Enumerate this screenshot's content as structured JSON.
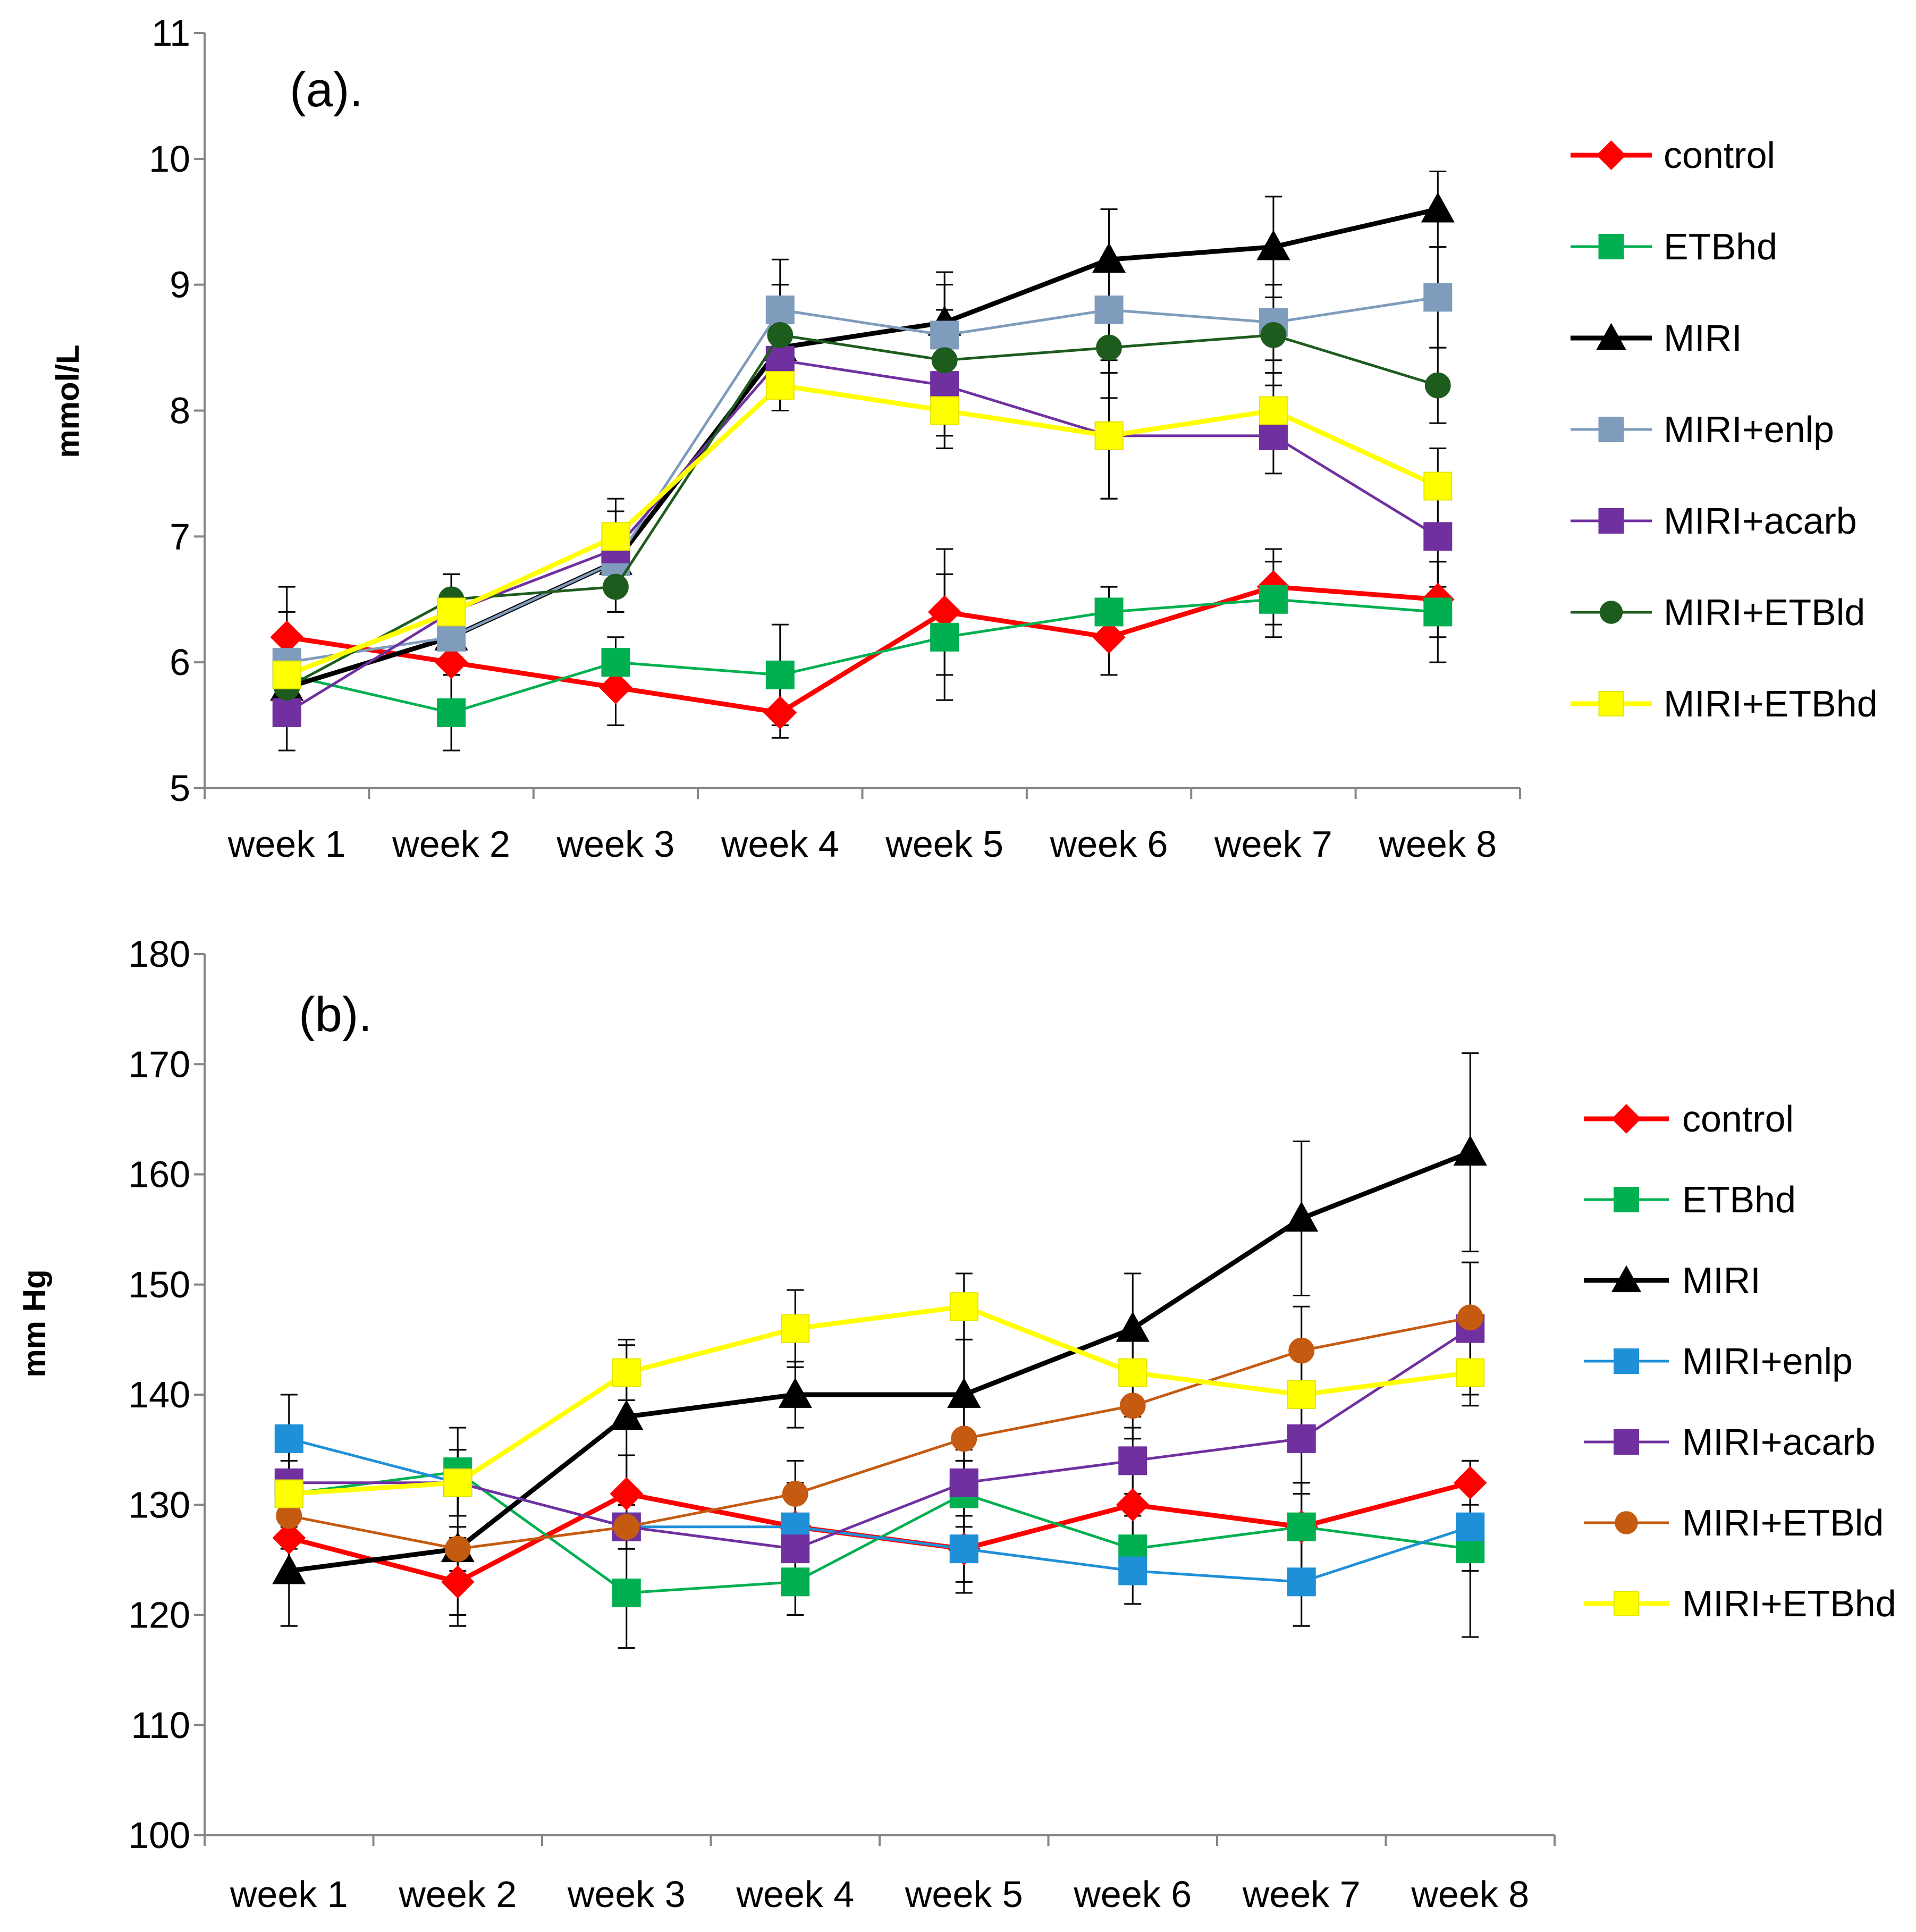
{
  "chart_data": [
    {
      "type": "line",
      "title": "(a).",
      "xlabel": "",
      "ylabel": "mmol/L",
      "ylim": [
        5,
        11
      ],
      "yticks": [
        5,
        6,
        7,
        8,
        9,
        10,
        11
      ],
      "grid": false,
      "legend_position": "right",
      "categories": [
        "week 1",
        "week 2",
        "week 3",
        "week 4",
        "week 5",
        "week 6",
        "week 7",
        "week 8"
      ],
      "series": [
        {
          "name": "control",
          "color": "#FF0000",
          "marker": "diamond",
          "line_weight": "thick",
          "values": [
            6.2,
            6.0,
            5.8,
            5.6,
            6.4,
            6.2,
            6.6,
            6.5
          ],
          "error": [
            0.4,
            0.4,
            0.3,
            0.2,
            0.5,
            0.3,
            0.3,
            0.3
          ]
        },
        {
          "name": "ETBhd",
          "color": "#00B050",
          "marker": "square",
          "line_weight": "thin",
          "values": [
            5.9,
            5.6,
            6.0,
            5.9,
            6.2,
            6.4,
            6.5,
            6.4
          ],
          "error": [
            0.3,
            0.3,
            0.2,
            0.4,
            0.5,
            0.2,
            0.3,
            0.4
          ]
        },
        {
          "name": "MIRI",
          "color": "#000000",
          "marker": "triangle",
          "line_weight": "thick",
          "values": [
            5.8,
            6.2,
            6.8,
            8.5,
            8.7,
            9.2,
            9.3,
            9.6
          ],
          "error": [
            0.3,
            0.3,
            0.4,
            0.5,
            0.4,
            0.4,
            0.4,
            0.3
          ]
        },
        {
          "name": "MIRI+enlp",
          "color": "#7F9CBC",
          "marker": "square",
          "line_weight": "thin",
          "values": [
            6.0,
            6.2,
            6.8,
            8.8,
            8.6,
            8.8,
            8.7,
            8.9
          ],
          "error": [
            0.4,
            0.3,
            0.4,
            0.4,
            0.4,
            0.4,
            0.3,
            0.4
          ]
        },
        {
          "name": "MIRI+acarb",
          "color": "#7030A0",
          "marker": "square",
          "line_weight": "thin",
          "values": [
            5.6,
            6.4,
            6.9,
            8.4,
            8.2,
            7.8,
            7.8,
            7.0
          ],
          "error": [
            0.3,
            0.3,
            0.3,
            0.4,
            0.4,
            0.5,
            0.3,
            0.4
          ]
        },
        {
          "name": "MIRI+ETBld",
          "color": "#1E5C1E",
          "marker": "circle",
          "line_weight": "thin",
          "values": [
            5.8,
            6.5,
            6.6,
            8.6,
            8.4,
            8.5,
            8.6,
            8.2
          ],
          "error": [
            0.3,
            0.2,
            0.2,
            0.4,
            0.4,
            0.4,
            0.4,
            0.3
          ]
        },
        {
          "name": "MIRI+ETBhd",
          "color": "#FFFF00",
          "marker": "square",
          "line_weight": "thick",
          "values": [
            5.9,
            6.4,
            7.0,
            8.2,
            8.0,
            7.8,
            8.0,
            7.4
          ],
          "error": [
            0.3,
            0.3,
            0.3,
            0.2,
            0.3,
            0.5,
            0.3,
            0.3
          ]
        }
      ]
    },
    {
      "type": "line",
      "title": "(b).",
      "xlabel": "",
      "ylabel": "mm Hg",
      "ylim": [
        100,
        180
      ],
      "yticks": [
        100,
        110,
        120,
        130,
        140,
        150,
        160,
        170,
        180
      ],
      "grid": false,
      "legend_position": "right",
      "categories": [
        "week 1",
        "week 2",
        "week 3",
        "week 4",
        "week 5",
        "week 6",
        "week 7",
        "week 8"
      ],
      "series": [
        {
          "name": "control",
          "color": "#FF0000",
          "marker": "diamond",
          "line_weight": "thick",
          "values": [
            127,
            123,
            131,
            128,
            126,
            130,
            128,
            132
          ],
          "error": [
            4,
            4,
            3.5,
            4,
            4,
            3.5,
            4,
            2
          ]
        },
        {
          "name": "ETBhd",
          "color": "#00B050",
          "marker": "square",
          "line_weight": "thin",
          "values": [
            131,
            133,
            122,
            123,
            131,
            126,
            128,
            126
          ],
          "error": [
            5,
            4,
            5,
            3,
            3,
            3,
            4,
            8
          ]
        },
        {
          "name": "MIRI",
          "color": "#000000",
          "marker": "triangle",
          "line_weight": "thick",
          "values": [
            124,
            126,
            138,
            140,
            140,
            146,
            156,
            162
          ],
          "error": [
            5,
            6,
            7,
            3,
            5,
            5,
            7,
            9
          ]
        },
        {
          "name": "MIRI+enlp",
          "color": "#1F8FD8",
          "marker": "square",
          "line_weight": "thin",
          "values": [
            136,
            132,
            128,
            128,
            126,
            124,
            123,
            128
          ],
          "error": [
            4,
            3,
            2,
            3,
            3,
            3,
            4,
            4
          ]
        },
        {
          "name": "MIRI+acarb",
          "color": "#7030A0",
          "marker": "square",
          "line_weight": "thin",
          "values": [
            132,
            132,
            128,
            126,
            132,
            134,
            136,
            146
          ],
          "error": [
            3,
            3,
            2,
            3,
            2,
            3,
            5,
            6
          ]
        },
        {
          "name": "MIRI+ETBld",
          "color": "#C55A11",
          "marker": "circle",
          "line_weight": "thin",
          "values": [
            129,
            126,
            128,
            131,
            136,
            139,
            144,
            147
          ],
          "error": [
            2,
            2,
            2,
            3,
            3,
            3,
            4,
            5
          ]
        },
        {
          "name": "MIRI+ETBhd",
          "color": "#FFFF00",
          "marker": "square",
          "line_weight": "thick",
          "values": [
            131,
            132,
            142,
            146,
            148,
            142,
            140,
            142
          ],
          "error": [
            3,
            3,
            2.5,
            3.5,
            3,
            4,
            4,
            3
          ]
        }
      ]
    }
  ]
}
